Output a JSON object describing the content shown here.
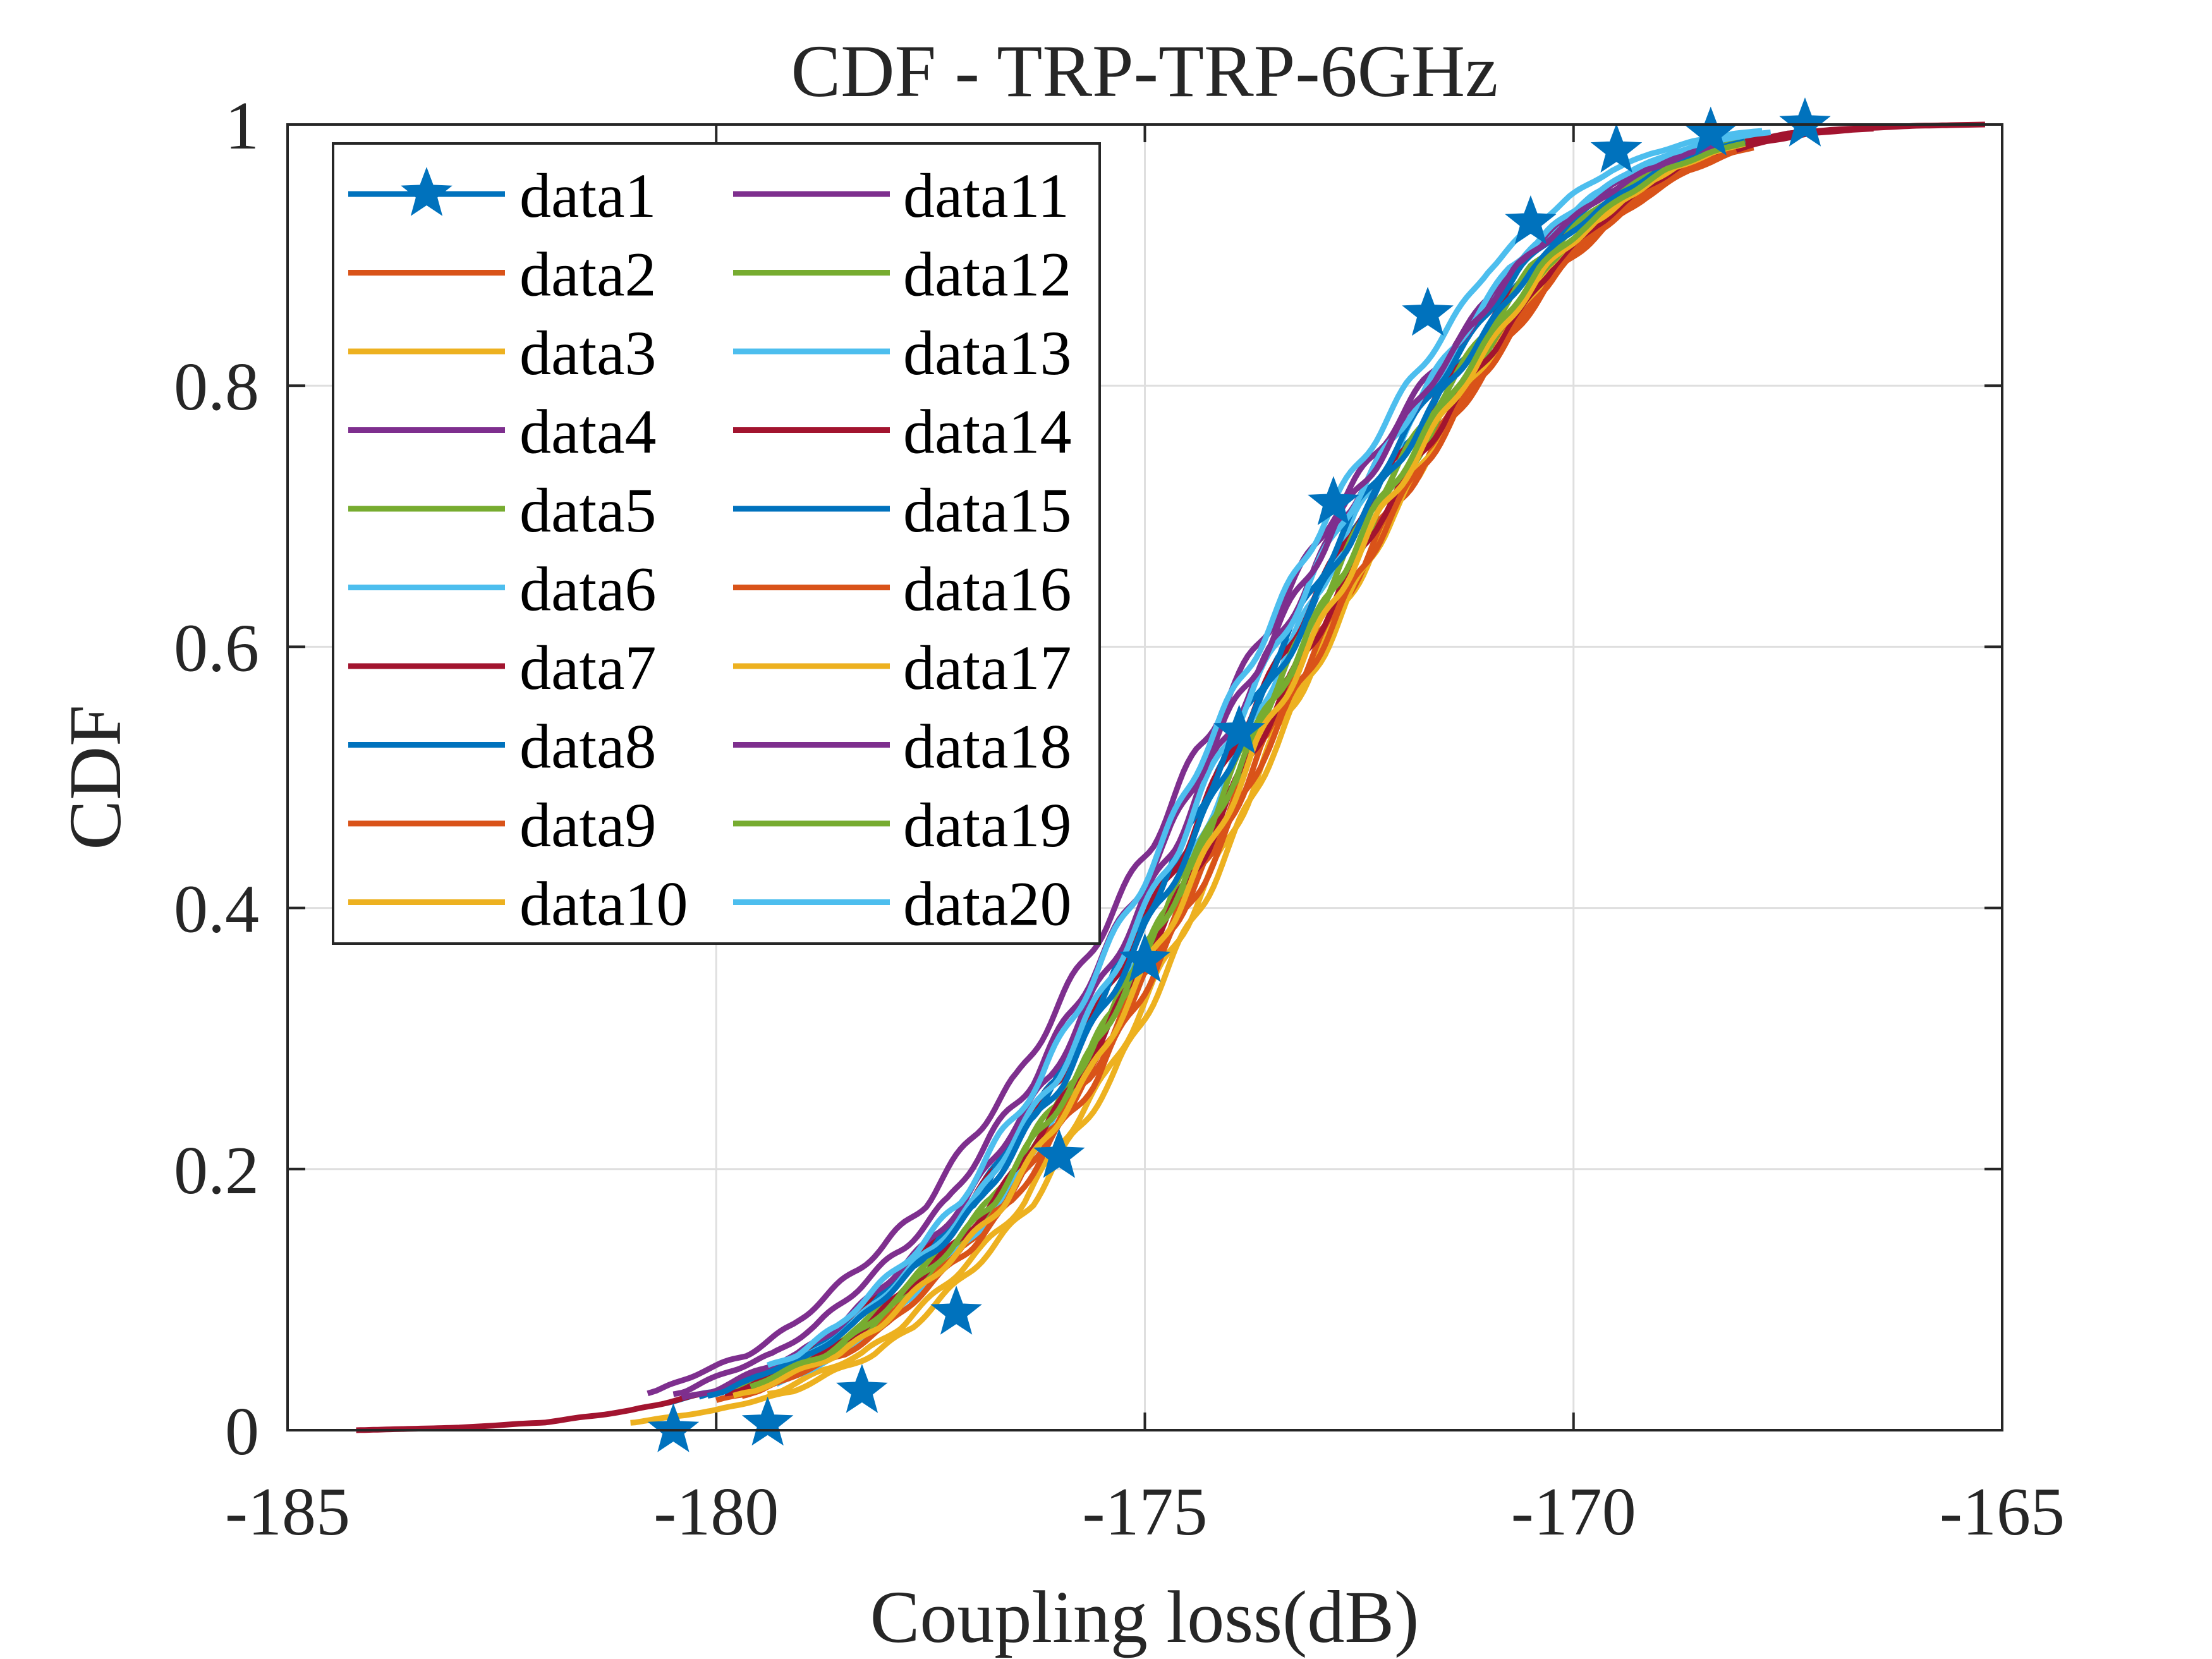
{
  "chart_data": {
    "type": "line",
    "title": "CDF - TRP-TRP-6GHz",
    "xlabel": "Coupling loss(dB)",
    "ylabel": "CDF",
    "xlim": [
      -185,
      -165
    ],
    "ylim": [
      0,
      1
    ],
    "xticks": [
      -185,
      -180,
      -175,
      -170,
      -165
    ],
    "xtick_labels": [
      "-185",
      "-180",
      "-175",
      "-170",
      "-165"
    ],
    "yticks": [
      0,
      0.2,
      0.4,
      0.6,
      0.8,
      1
    ],
    "ytick_labels": [
      "0",
      "0.2",
      "0.4",
      "0.6",
      "0.8",
      "1"
    ],
    "grid": true,
    "legend_position": "top-left",
    "legend_columns": 2,
    "series": [
      {
        "name": "data1",
        "color": "#0072BD",
        "marker": "star",
        "offset": 0.0,
        "spread": 1.0,
        "xmin": -180.6,
        "xmax": -167.3
      },
      {
        "name": "data2",
        "color": "#D95319",
        "marker": "none",
        "offset": 0.3,
        "spread": 0.97,
        "xmin": -180.0,
        "xmax": -168.0
      },
      {
        "name": "data3",
        "color": "#EDB120",
        "marker": "none",
        "offset": 0.45,
        "spread": 0.95,
        "xmin": -179.4,
        "xmax": -168.2
      },
      {
        "name": "data4",
        "color": "#7E2F8E",
        "marker": "none",
        "offset": -0.4,
        "spread": 1.05,
        "xmin": -180.8,
        "xmax": -168.4
      },
      {
        "name": "data5",
        "color": "#77AC30",
        "marker": "none",
        "offset": 0.2,
        "spread": 1.0,
        "xmin": -179.8,
        "xmax": -168.0
      },
      {
        "name": "data6",
        "color": "#4DBEEE",
        "marker": "none",
        "offset": 0.1,
        "spread": 0.92,
        "xmin": -179.3,
        "xmax": -167.8
      },
      {
        "name": "data7",
        "color": "#A2142F",
        "marker": "none",
        "offset": 0.0,
        "spread": 1.0,
        "xmin": -184.2,
        "xmax": -165.2
      },
      {
        "name": "data8",
        "color": "#0072BD",
        "marker": "none",
        "offset": -0.05,
        "spread": 0.98,
        "xmin": -180.2,
        "xmax": -168.1
      },
      {
        "name": "data9",
        "color": "#D95319",
        "marker": "none",
        "offset": 0.35,
        "spread": 1.0,
        "xmin": -179.6,
        "xmax": -167.9
      },
      {
        "name": "data10",
        "color": "#EDB120",
        "marker": "none",
        "offset": 0.5,
        "spread": 0.93,
        "xmin": -181.0,
        "xmax": -168.1
      },
      {
        "name": "data11",
        "color": "#7E2F8E",
        "marker": "none",
        "offset": -0.15,
        "spread": 0.98,
        "xmin": -180.4,
        "xmax": -168.6
      },
      {
        "name": "data12",
        "color": "#77AC30",
        "marker": "none",
        "offset": 0.15,
        "spread": 0.96,
        "xmin": -179.5,
        "xmax": -168.0
      },
      {
        "name": "data13",
        "color": "#4DBEEE",
        "marker": "none",
        "offset": -0.1,
        "spread": 0.96,
        "xmin": -179.2,
        "xmax": -167.7
      },
      {
        "name": "data14",
        "color": "#A2142F",
        "marker": "none",
        "offset": 0.25,
        "spread": 1.0,
        "xmin": -179.9,
        "xmax": -166.5
      },
      {
        "name": "data15",
        "color": "#0072BD",
        "marker": "none",
        "offset": 0.05,
        "spread": 0.99,
        "xmin": -180.1,
        "xmax": -168.0
      },
      {
        "name": "data16",
        "color": "#D95319",
        "marker": "none",
        "offset": 0.4,
        "spread": 0.98,
        "xmin": -179.7,
        "xmax": -168.1
      },
      {
        "name": "data17",
        "color": "#EDB120",
        "marker": "none",
        "offset": 0.28,
        "spread": 0.97,
        "xmin": -179.8,
        "xmax": -168.0
      },
      {
        "name": "data18",
        "color": "#7E2F8E",
        "marker": "none",
        "offset": -0.25,
        "spread": 1.02,
        "xmin": -180.5,
        "xmax": -168.3
      },
      {
        "name": "data19",
        "color": "#77AC30",
        "marker": "none",
        "offset": 0.18,
        "spread": 0.98,
        "xmin": -179.6,
        "xmax": -168.0
      },
      {
        "name": "data20",
        "color": "#4DBEEE",
        "marker": "none",
        "offset": -0.3,
        "spread": 0.95,
        "xmin": -179.4,
        "xmax": -167.8
      }
    ],
    "base_cdf_points": [
      [
        -184.2,
        0.0
      ],
      [
        -183.0,
        0.002
      ],
      [
        -182.0,
        0.006
      ],
      [
        -181.0,
        0.015
      ],
      [
        -180.0,
        0.03
      ],
      [
        -179.5,
        0.045
      ],
      [
        -179.0,
        0.058
      ],
      [
        -178.5,
        0.08
      ],
      [
        -178.0,
        0.11
      ],
      [
        -177.5,
        0.14
      ],
      [
        -177.0,
        0.175
      ],
      [
        -176.5,
        0.225
      ],
      [
        -176.0,
        0.27
      ],
      [
        -175.5,
        0.33
      ],
      [
        -175.0,
        0.39
      ],
      [
        -174.5,
        0.45
      ],
      [
        -174.0,
        0.52
      ],
      [
        -173.5,
        0.58
      ],
      [
        -173.0,
        0.64
      ],
      [
        -172.5,
        0.7
      ],
      [
        -172.0,
        0.75
      ],
      [
        -171.5,
        0.8
      ],
      [
        -171.0,
        0.845
      ],
      [
        -170.5,
        0.89
      ],
      [
        -170.0,
        0.92
      ],
      [
        -169.5,
        0.945
      ],
      [
        -169.0,
        0.965
      ],
      [
        -168.5,
        0.978
      ],
      [
        -168.0,
        0.987
      ],
      [
        -167.5,
        0.993
      ],
      [
        -167.0,
        0.996
      ],
      [
        -166.0,
        0.999
      ],
      [
        -165.2,
        1.0
      ]
    ],
    "star_markers": [
      [
        -180.5,
        0.0
      ],
      [
        -179.4,
        0.005
      ],
      [
        -178.3,
        0.03
      ],
      [
        -177.2,
        0.09
      ],
      [
        -176.0,
        0.21
      ],
      [
        -175.0,
        0.36
      ],
      [
        -173.9,
        0.535
      ],
      [
        -172.8,
        0.71
      ],
      [
        -171.7,
        0.855
      ],
      [
        -170.5,
        0.925
      ],
      [
        -169.5,
        0.98
      ],
      [
        -168.4,
        0.993
      ],
      [
        -167.3,
        1.0
      ]
    ]
  }
}
